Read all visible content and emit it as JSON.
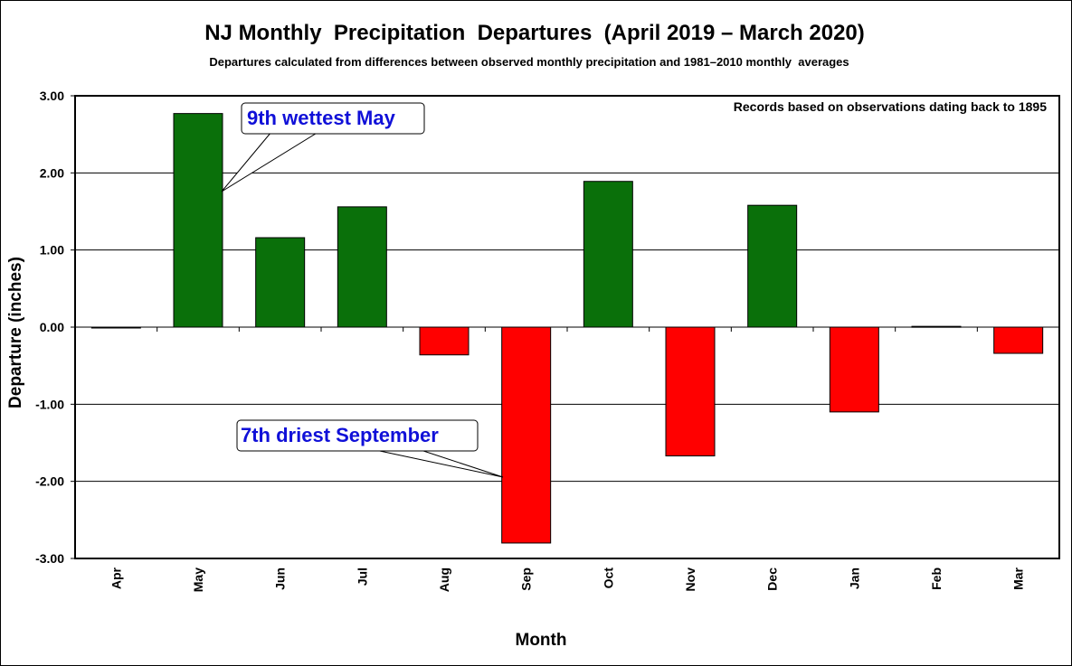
{
  "chart_data": {
    "type": "bar",
    "title": "NJ Monthly  Precipitation  Departures  (April 2019 – March 2020)",
    "subtitle": "Departures calculated from differences between observed monthly precipitation and 1981–2010 monthly  averages",
    "xlabel": "Month",
    "ylabel": "Departure (inches)",
    "categories": [
      "Apr",
      "May",
      "Jun",
      "Jul",
      "Aug",
      "Sep",
      "Oct",
      "Nov",
      "Dec",
      "Jan",
      "Feb",
      "Mar"
    ],
    "values": [
      -0.01,
      2.77,
      1.16,
      1.56,
      -0.36,
      -2.8,
      1.89,
      -1.67,
      1.58,
      -1.1,
      0.01,
      -0.34
    ],
    "ylim": [
      -3.0,
      3.0
    ],
    "yticks": [
      "3.00",
      "2.00",
      "1.00",
      "0.00",
      "-1.00",
      "-2.00",
      "-3.00"
    ],
    "ytick_values": [
      3,
      2,
      1,
      0,
      -1,
      -2,
      -3
    ],
    "grid": true,
    "colors": {
      "positive": "#0a700a",
      "negative": "#ff0000"
    },
    "note": "Records based on observations dating back to 1895",
    "annotations": [
      {
        "text": "9th wettest May",
        "category": "May"
      },
      {
        "text": "7th driest September",
        "category": "Sep"
      }
    ]
  }
}
